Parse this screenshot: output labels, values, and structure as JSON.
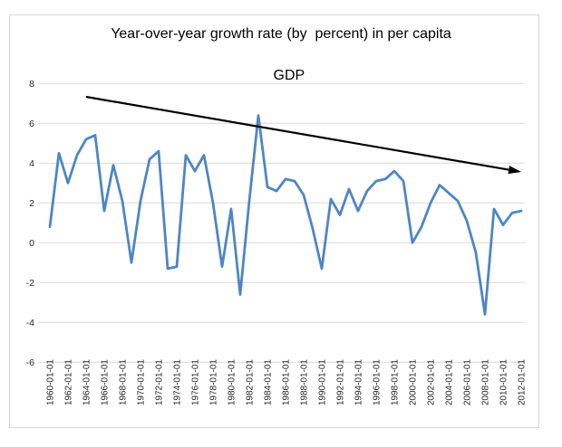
{
  "figure": {
    "background": "#ffffff",
    "border_color": "#d7d7d7"
  },
  "title": {
    "full": "Year-over-year growth rate (by  percent) in per capita GDP",
    "line1": "Year-over-year growth rate (by  percent) in per capita",
    "line2": "GDP"
  },
  "chart_data": {
    "type": "line",
    "title": "Year-over-year growth rate (by  percent) in per capita GDP",
    "xlabel": "",
    "ylabel": "",
    "ylim": [
      -6,
      8
    ],
    "grid": "horizontal",
    "legend": "none",
    "line_color": "#4e86c4",
    "grid_color": "#d9d9d9",
    "tick_label_color": "#262626",
    "y_tick_labels": [
      "8",
      "6",
      "4",
      "2",
      "0",
      "-2",
      "-4",
      "-6"
    ],
    "y_tick_values": [
      8,
      6,
      4,
      2,
      0,
      -2,
      -4,
      -6
    ],
    "x_tick_labels": [
      "1960-01-01",
      "1962-01-01",
      "1964-01-01",
      "1966-01-01",
      "1968-01-01",
      "1970-01-01",
      "1972-01-01",
      "1974-01-01",
      "1976-01-01",
      "1978-01-01",
      "1980-01-01",
      "1982-01-01",
      "1984-01-01",
      "1986-01-01",
      "1988-01-01",
      "1990-01-01",
      "1992-01-01",
      "1994-01-01",
      "1996-01-01",
      "1998-01-01",
      "2000-01-01",
      "2002-01-01",
      "2004-01-01",
      "2006-01-01",
      "2008-01-01",
      "2010-01-01",
      "2012-01-01"
    ],
    "x": [
      1960,
      1961,
      1962,
      1963,
      1964,
      1965,
      1966,
      1967,
      1968,
      1969,
      1970,
      1971,
      1972,
      1973,
      1974,
      1975,
      1976,
      1977,
      1978,
      1979,
      1980,
      1981,
      1982,
      1983,
      1984,
      1985,
      1986,
      1987,
      1988,
      1989,
      1990,
      1991,
      1992,
      1993,
      1994,
      1995,
      1996,
      1997,
      1998,
      1999,
      2000,
      2001,
      2002,
      2003,
      2004,
      2005,
      2006,
      2007,
      2008,
      2009,
      2010,
      2011,
      2012
    ],
    "values": [
      0.8,
      4.5,
      3.0,
      4.4,
      5.2,
      5.4,
      1.6,
      3.9,
      2.1,
      -1.0,
      2.1,
      4.2,
      4.6,
      -1.3,
      -1.2,
      4.4,
      3.6,
      4.4,
      2.0,
      -1.2,
      1.7,
      -2.6,
      2.1,
      6.4,
      2.8,
      2.6,
      3.2,
      3.1,
      2.4,
      0.7,
      -1.3,
      2.2,
      1.4,
      2.7,
      1.6,
      2.6,
      3.1,
      3.2,
      3.6,
      3.1,
      0.0,
      0.8,
      2.0,
      2.9,
      2.5,
      2.1,
      1.1,
      -0.5,
      -3.6,
      1.7,
      0.9,
      1.5,
      1.6
    ],
    "annotations": [
      {
        "type": "trend-arrow",
        "from_x": 1964,
        "from_y": 7.33,
        "to_x": 2012,
        "to_y": 3.56,
        "color": "#000000"
      }
    ]
  }
}
